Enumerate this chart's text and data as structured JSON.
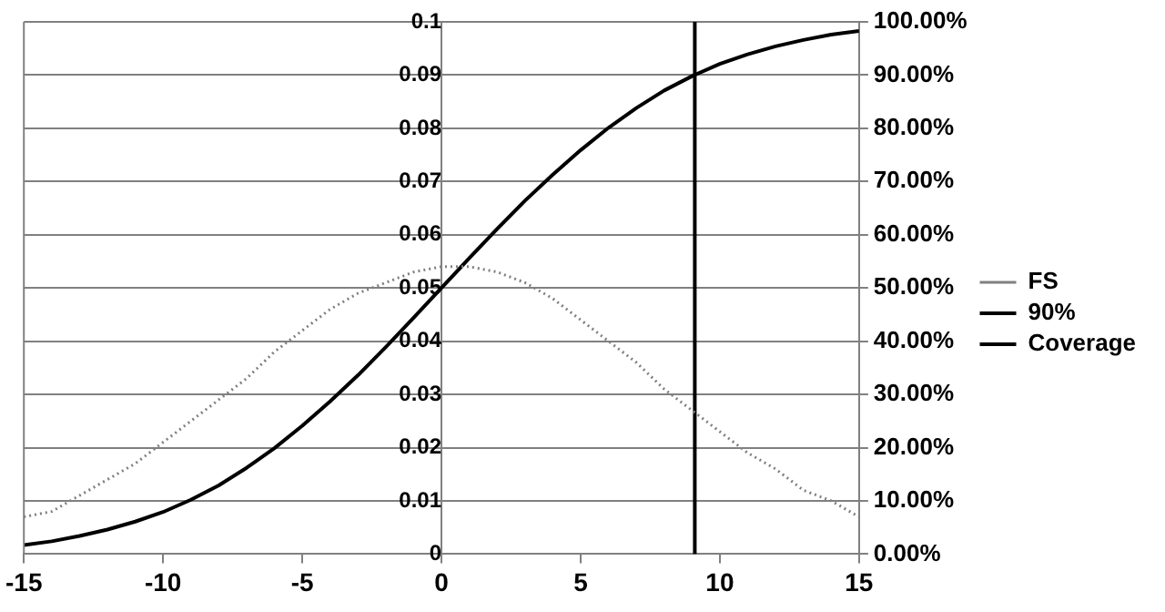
{
  "chart_data": {
    "type": "line",
    "x": [
      -15,
      -14,
      -13,
      -12,
      -11,
      -10,
      -9,
      -8,
      -7,
      -6,
      -5,
      -4,
      -3,
      -2,
      -1,
      0,
      1,
      2,
      3,
      4,
      5,
      6,
      7,
      8,
      9,
      10,
      11,
      12,
      13,
      14,
      15
    ],
    "series": [
      {
        "name": "FS",
        "color": "#808080",
        "line_style": "dotted",
        "values": [
          0.007,
          0.008,
          0.011,
          0.014,
          0.017,
          0.021,
          0.025,
          0.029,
          0.033,
          0.038,
          0.042,
          0.046,
          0.049,
          0.051,
          0.053,
          0.054,
          0.054,
          0.053,
          0.051,
          0.048,
          0.044,
          0.04,
          0.036,
          0.031,
          0.027,
          0.023,
          0.019,
          0.016,
          0.012,
          0.01,
          0.007
        ]
      },
      {
        "name": "90%",
        "color": "#000000",
        "line_style": "solid",
        "axis": "y2",
        "x": [
          9.1,
          9.1
        ],
        "values": [
          0,
          100
        ]
      },
      {
        "name": "Coverage",
        "color": "#000000",
        "line_style": "solid",
        "axis": "y2",
        "values": [
          1.7,
          2.4,
          3.4,
          4.6,
          6.1,
          7.9,
          10.2,
          12.9,
          16.2,
          19.9,
          24.1,
          28.7,
          33.6,
          38.9,
          44.4,
          50,
          55.6,
          61.1,
          66.4,
          71.3,
          75.9,
          80.1,
          83.8,
          87.1,
          89.8,
          92.1,
          93.9,
          95.4,
          96.6,
          97.6,
          98.3
        ]
      }
    ],
    "xlim": [
      -15,
      15
    ],
    "xticks": [
      -15,
      -10,
      -5,
      0,
      5,
      10,
      15
    ],
    "ylim": [
      0,
      0.1
    ],
    "yticks": [
      0,
      0.01,
      0.02,
      0.03,
      0.04,
      0.05,
      0.06,
      0.07,
      0.08,
      0.09,
      0.1
    ],
    "y2lim": [
      0,
      100
    ],
    "y2ticks": [
      {
        "value": 0,
        "label": "0.00%"
      },
      {
        "value": 10,
        "label": "10.00%"
      },
      {
        "value": 20,
        "label": "20.00%"
      },
      {
        "value": 30,
        "label": "30.00%"
      },
      {
        "value": 40,
        "label": "40.00%"
      },
      {
        "value": 50,
        "label": "50.00%"
      },
      {
        "value": 60,
        "label": "60.00%"
      },
      {
        "value": 70,
        "label": "70.00%"
      },
      {
        "value": 80,
        "label": "80.00%"
      },
      {
        "value": 90,
        "label": "90.00%"
      },
      {
        "value": 100,
        "label": "100.00%"
      }
    ],
    "grid": "y",
    "legend": "right",
    "marker": "none"
  }
}
